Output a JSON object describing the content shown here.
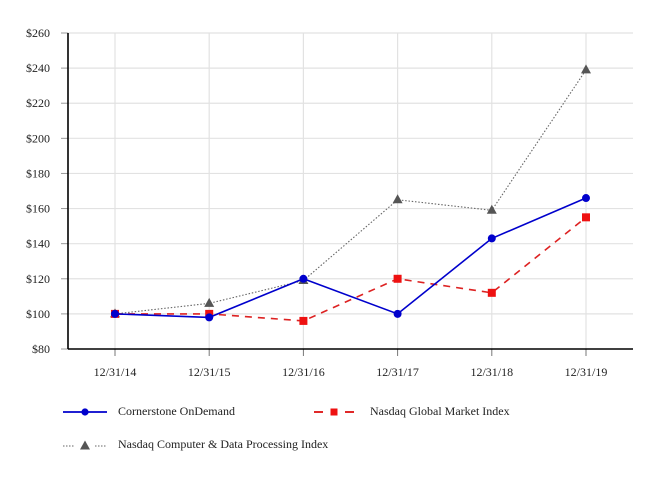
{
  "chart_data": {
    "type": "line",
    "title": "",
    "xlabel": "",
    "ylabel": "",
    "categories": [
      "12/31/14",
      "12/31/15",
      "12/31/16",
      "12/31/17",
      "12/31/18",
      "12/31/19"
    ],
    "ylim": [
      80,
      260
    ],
    "yticks": [
      80,
      100,
      120,
      140,
      160,
      180,
      200,
      220,
      240,
      260
    ],
    "ytick_labels": [
      "$80",
      "$100",
      "$120",
      "$140",
      "$160",
      "$180",
      "$200",
      "$220",
      "$240",
      "$260"
    ],
    "grid": true,
    "legend_position": "bottom",
    "series": [
      {
        "name": "Cornerstone OnDemand",
        "color": "#0000cc",
        "line_style": "solid",
        "marker": "circle",
        "values": [
          100,
          98,
          120,
          100,
          143,
          166
        ]
      },
      {
        "name": "Nasdaq Global Market Index",
        "color": "#dd1111",
        "line_style": "dashed",
        "marker": "square",
        "values": [
          100,
          100,
          96,
          120,
          112,
          155
        ]
      },
      {
        "name": "Nasdaq Computer & Data Processing Index",
        "color": "#555555",
        "line_style": "dotted",
        "marker": "triangle",
        "values": [
          100,
          106,
          119,
          165,
          159,
          239
        ]
      }
    ]
  },
  "legend": {
    "items": [
      {
        "label": "Cornerstone OnDemand"
      },
      {
        "label": "Nasdaq Global Market Index"
      },
      {
        "label": "Nasdaq Computer & Data Processing Index"
      }
    ]
  }
}
